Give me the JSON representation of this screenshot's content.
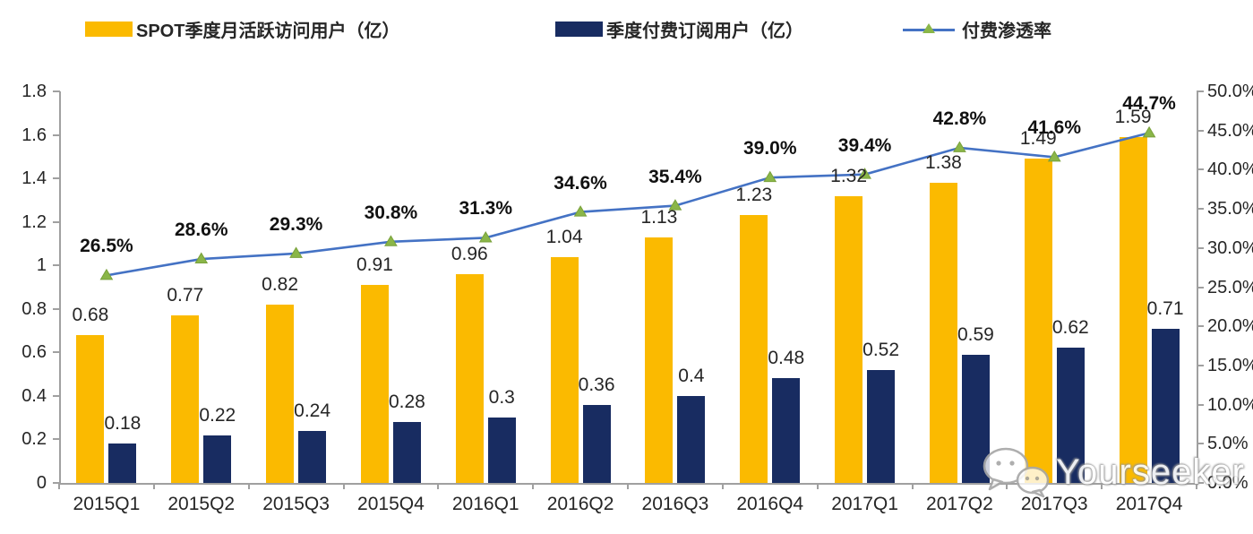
{
  "legend": [
    {
      "label": "SPOT季度月活跃访问用户（亿）",
      "type": "bar",
      "color": "#FBBA00"
    },
    {
      "label": "季度付费订阅用户（亿）",
      "type": "bar",
      "color": "#182C61"
    },
    {
      "label": "付费渗透率",
      "type": "line",
      "color": "#4472C4",
      "marker_color": "#8AB648"
    }
  ],
  "chart_data": {
    "type": "bar",
    "subtype": "grouped bars + line on secondary axis",
    "categories": [
      "2015Q1",
      "2015Q2",
      "2015Q3",
      "2015Q4",
      "2016Q1",
      "2016Q2",
      "2016Q3",
      "2016Q4",
      "2017Q1",
      "2017Q2",
      "2017Q3",
      "2017Q4"
    ],
    "series": [
      {
        "name": "SPOT季度月活跃访问用户（亿）",
        "type": "bar",
        "axis": "left",
        "color": "#FBBA00",
        "values": [
          0.68,
          0.77,
          0.82,
          0.91,
          0.96,
          1.04,
          1.13,
          1.23,
          1.32,
          1.38,
          1.49,
          1.59
        ],
        "labels": [
          "0.68",
          "0.77",
          "0.82",
          "0.91",
          "0.96",
          "1.04",
          "1.13",
          "1.23",
          "1.32",
          "1.38",
          "1.49",
          "1.59"
        ]
      },
      {
        "name": "季度付费订阅用户（亿）",
        "type": "bar",
        "axis": "left",
        "color": "#182C61",
        "values": [
          0.18,
          0.22,
          0.24,
          0.28,
          0.3,
          0.36,
          0.4,
          0.48,
          0.52,
          0.59,
          0.62,
          0.71
        ],
        "labels": [
          "0.18",
          "0.22",
          "0.24",
          "0.28",
          "0.3",
          "0.36",
          "0.4",
          "0.48",
          "0.52",
          "0.59",
          "0.62",
          "0.71"
        ]
      },
      {
        "name": "付费渗透率",
        "type": "line",
        "axis": "right",
        "color": "#4472C4",
        "marker": "triangle",
        "marker_color": "#8AB648",
        "values": [
          26.5,
          28.6,
          29.3,
          30.8,
          31.3,
          34.6,
          35.4,
          39.0,
          39.4,
          42.8,
          41.6,
          44.7
        ],
        "labels": [
          "26.5%",
          "28.6%",
          "29.3%",
          "30.8%",
          "31.3%",
          "34.6%",
          "35.4%",
          "39.0%",
          "39.4%",
          "42.8%",
          "41.6%",
          "44.7%"
        ]
      }
    ],
    "left_axis": {
      "min": 0,
      "max": 1.8,
      "step": 0.2,
      "ticks": [
        "0",
        "0.2",
        "0.4",
        "0.6",
        "0.8",
        "1",
        "1.2",
        "1.4",
        "1.6",
        "1.8"
      ]
    },
    "right_axis": {
      "min": 0,
      "max": 50,
      "step": 5,
      "ticks": [
        "0.0%",
        "5.0%",
        "10.0%",
        "15.0%",
        "20.0%",
        "25.0%",
        "30.0%",
        "35.0%",
        "40.0%",
        "45.0%",
        "50.0%"
      ]
    },
    "grid": false,
    "legend_position": "top"
  },
  "watermark": {
    "text": "Yourseeker",
    "icon": "wechat-icon"
  }
}
